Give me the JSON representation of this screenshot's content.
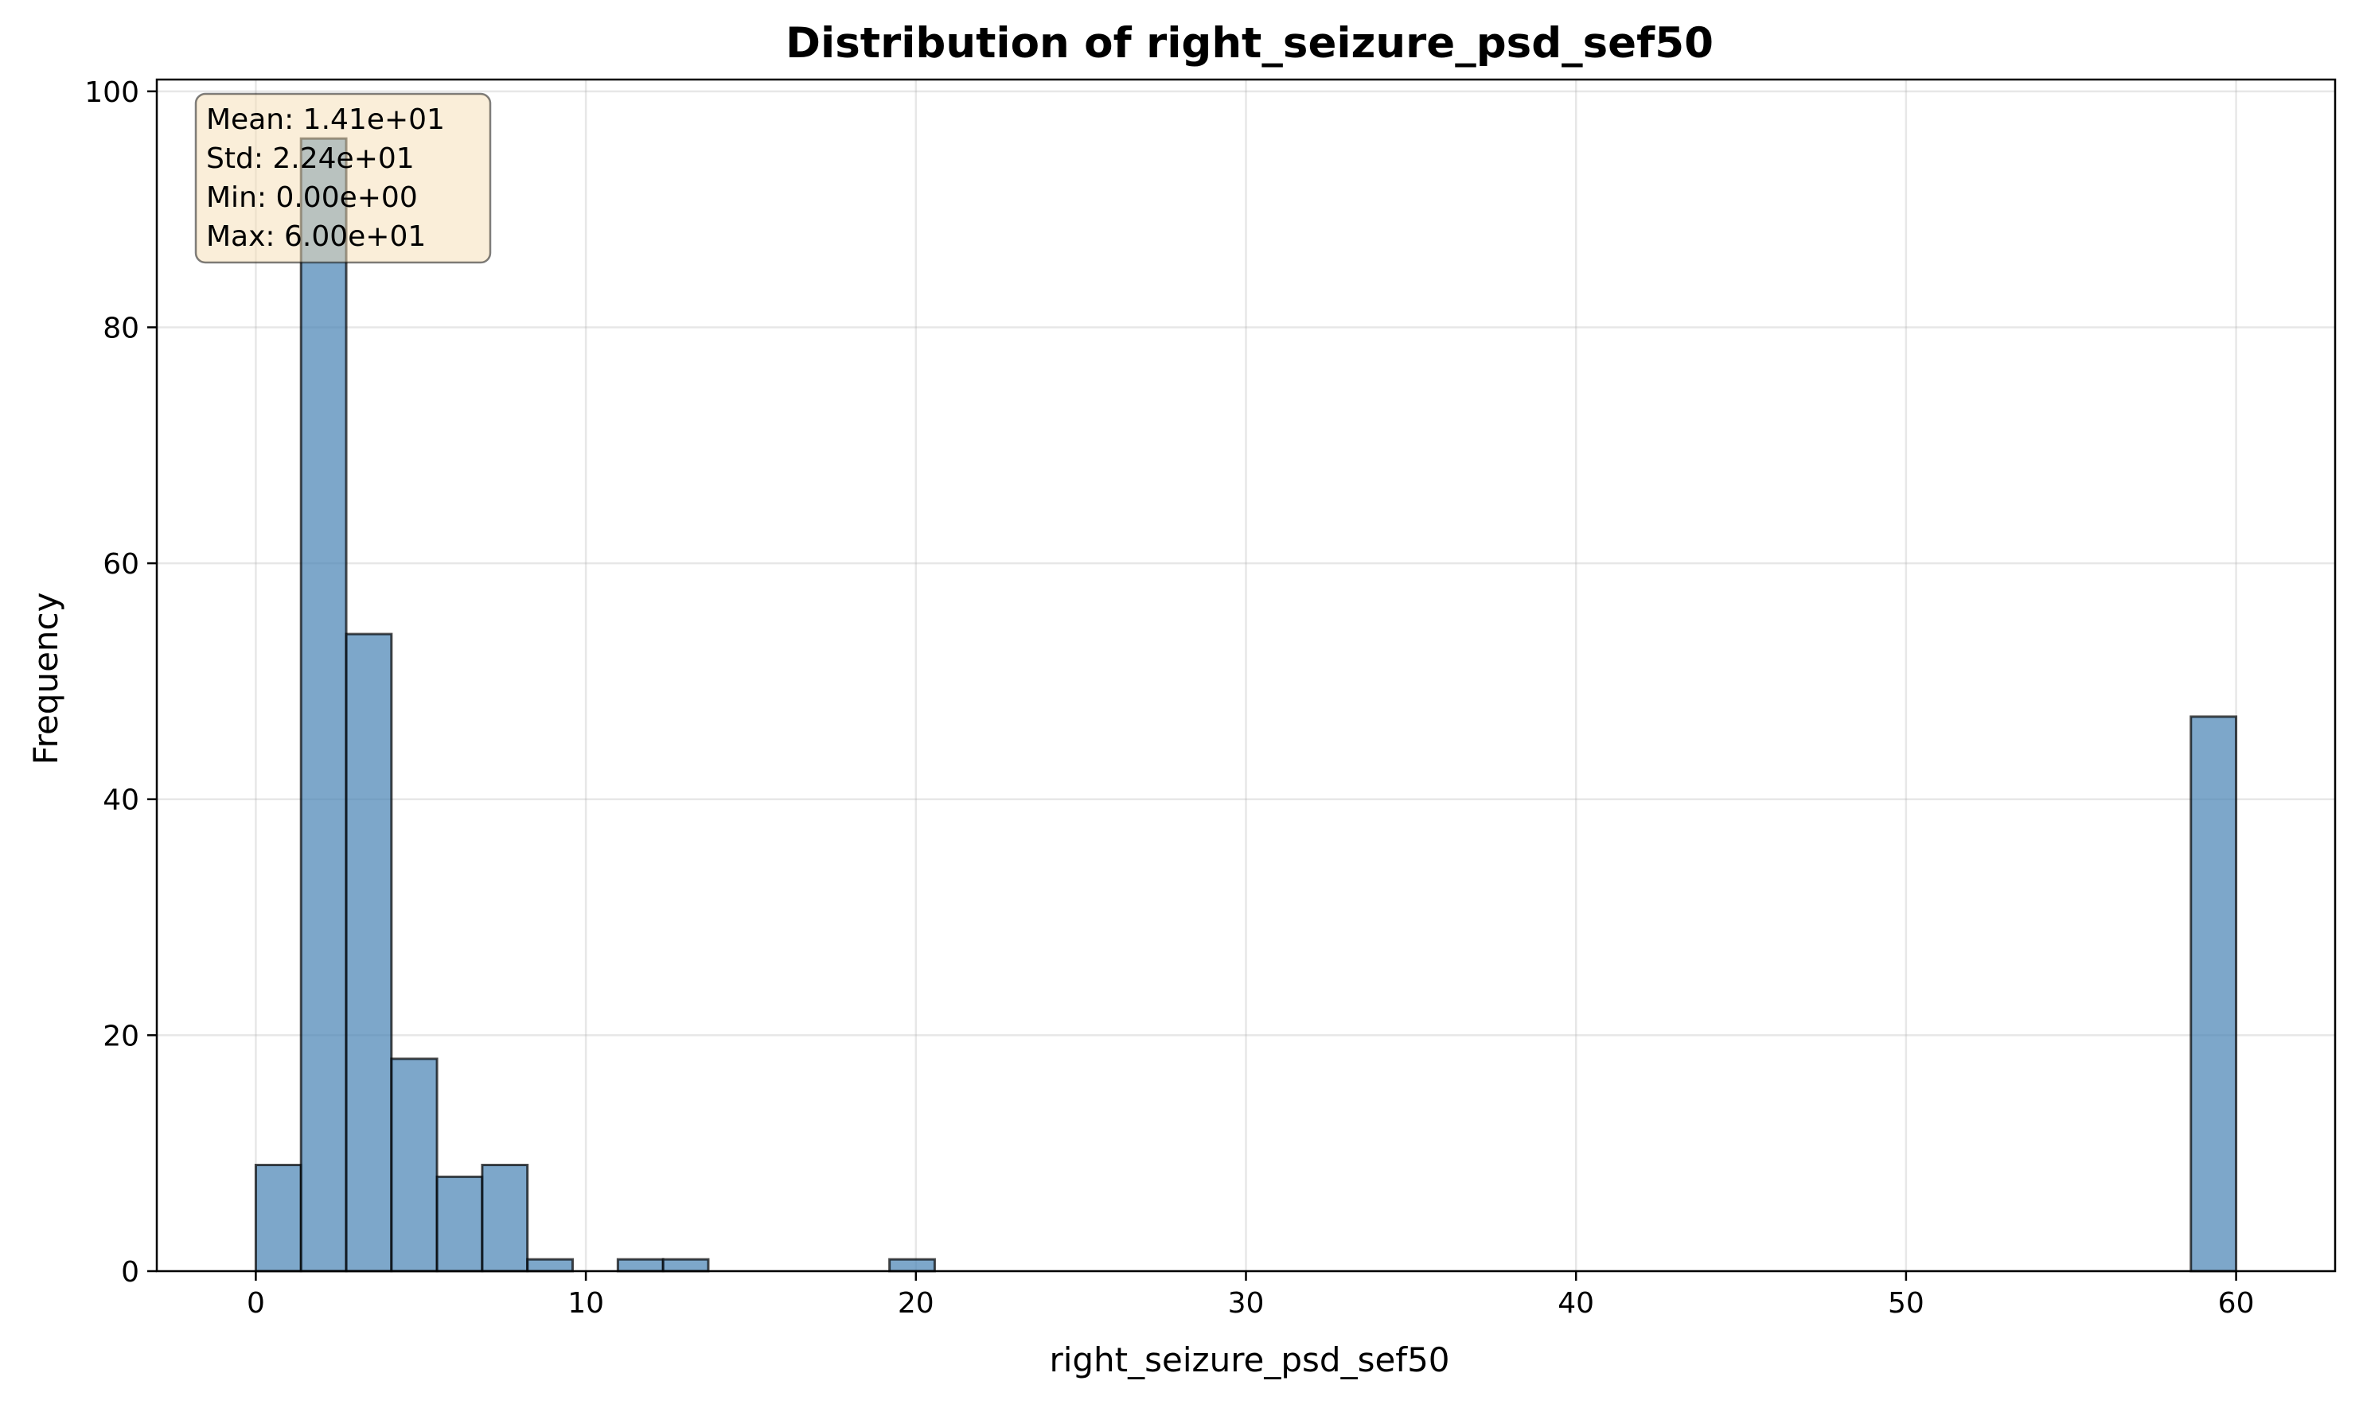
{
  "chart_data": {
    "type": "bar",
    "title": "Distribution of right_seizure_psd_sef50",
    "xlabel": "right_seizure_psd_sef50",
    "ylabel": "Frequency",
    "xlim": [
      -3,
      63
    ],
    "ylim": [
      0,
      101
    ],
    "xticks": [
      0,
      10,
      20,
      30,
      40,
      50,
      60
    ],
    "yticks": [
      0,
      20,
      40,
      60,
      80,
      100
    ],
    "grid": true,
    "bar_color": "#4682b4",
    "bar_edge_color": "#000000",
    "bins": [
      {
        "x0": 0.0,
        "x1": 1.37,
        "count": 9
      },
      {
        "x0": 1.37,
        "x1": 2.74,
        "count": 96
      },
      {
        "x0": 2.74,
        "x1": 4.11,
        "count": 54
      },
      {
        "x0": 4.11,
        "x1": 5.49,
        "count": 18
      },
      {
        "x0": 5.49,
        "x1": 6.86,
        "count": 8
      },
      {
        "x0": 6.86,
        "x1": 8.23,
        "count": 9
      },
      {
        "x0": 8.23,
        "x1": 9.6,
        "count": 1
      },
      {
        "x0": 10.97,
        "x1": 12.34,
        "count": 1
      },
      {
        "x0": 12.34,
        "x1": 13.71,
        "count": 1
      },
      {
        "x0": 19.2,
        "x1": 20.57,
        "count": 1
      },
      {
        "x0": 58.63,
        "x1": 60.0,
        "count": 47
      }
    ],
    "stats_box": {
      "lines": [
        "Mean: 1.41e+01",
        "Std: 2.24e+01",
        "Min: 0.00e+00",
        "Max: 6.00e+01"
      ],
      "placement": "top-left",
      "face_color": "#f5deb3",
      "edge_color": "#000000"
    }
  }
}
